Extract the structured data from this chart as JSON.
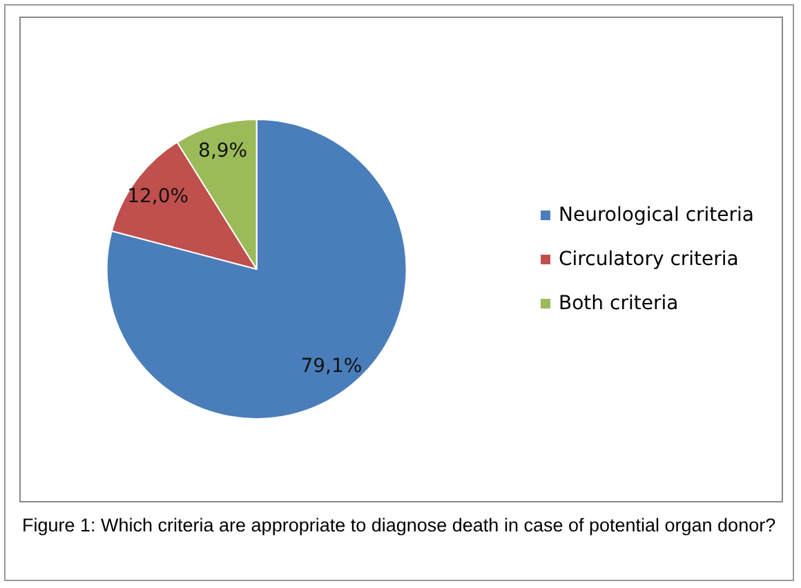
{
  "chart_data": {
    "type": "pie",
    "categories": [
      "Neurological criteria",
      "Circulatory criteria",
      "Both criteria"
    ],
    "values": [
      79.1,
      12.0,
      8.9
    ],
    "value_labels": [
      "79,1%",
      "12,0%",
      "8,9%"
    ],
    "colors": [
      "#4a7ebb",
      "#c0504d",
      "#9bbb59"
    ],
    "legend": "right",
    "annotations": [
      "Figure 1: Which criteria are appropriate to diagnose death in case of potential organ donor?"
    ]
  }
}
